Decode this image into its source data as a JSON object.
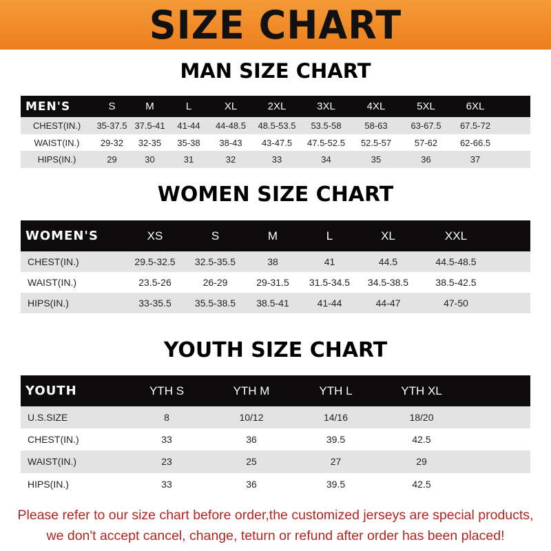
{
  "title": "SIZE CHART",
  "colors": {
    "banner": "#ec7f1c",
    "header_row": "#0d0b0b",
    "stripe": "#e3e3e3",
    "note": "#b5231f"
  },
  "men": {
    "title": "MAN SIZE CHART",
    "header": [
      "MEN'S",
      "S",
      "M",
      "L",
      "XL",
      "2XL",
      "3XL",
      "4XL",
      "5XL",
      "6XL"
    ],
    "rows": [
      [
        "CHEST(IN.)",
        "35-37.5",
        "37.5-41",
        "41-44",
        "44-48.5",
        "48.5-53.5",
        "53.5-58",
        "58-63",
        "63-67.5",
        "67.5-72"
      ],
      [
        "WAIST(IN.)",
        "29-32",
        "32-35",
        "35-38",
        "38-43",
        "43-47.5",
        "47.5-52.5",
        "52.5-57",
        "57-62",
        "62-66.5"
      ],
      [
        "HIPS(IN.)",
        "29",
        "30",
        "31",
        "32",
        "33",
        "34",
        "35",
        "36",
        "37"
      ]
    ]
  },
  "women": {
    "title": "WOMEN SIZE CHART",
    "header": [
      "WOMEN'S",
      "XS",
      "S",
      "M",
      "L",
      "XL",
      "XXL"
    ],
    "rows": [
      [
        "CHEST(IN.)",
        "29.5-32.5",
        "32.5-35.5",
        "38",
        "41",
        "44.5",
        "44.5-48.5"
      ],
      [
        "WAIST(IN.)",
        "23.5-26",
        "26-29",
        "29-31.5",
        "31.5-34.5",
        "34.5-38.5",
        "38.5-42.5"
      ],
      [
        "HIPS(IN.)",
        "33-35.5",
        "35.5-38.5",
        "38.5-41",
        "41-44",
        "44-47",
        "47-50"
      ]
    ]
  },
  "youth": {
    "title": "YOUTH SIZE CHART",
    "header": [
      "YOUTH",
      "YTH S",
      "YTH M",
      "YTH L",
      "YTH XL"
    ],
    "rows": [
      [
        "U.S.SIZE",
        "8",
        "10/12",
        "14/16",
        "18/20"
      ],
      [
        "CHEST(IN.)",
        "33",
        "36",
        "39.5",
        "42.5"
      ],
      [
        "WAIST(IN.)",
        "23",
        "25",
        "27",
        "29"
      ],
      [
        "HIPS(IN.)",
        "33",
        "36",
        "39.5",
        "42.5"
      ]
    ]
  },
  "note": {
    "line1": "Please refer to our size chart before order,the customized jerseys are special products,",
    "line2": "we don't accept cancel, change, teturn or refund after order has been placed!"
  }
}
